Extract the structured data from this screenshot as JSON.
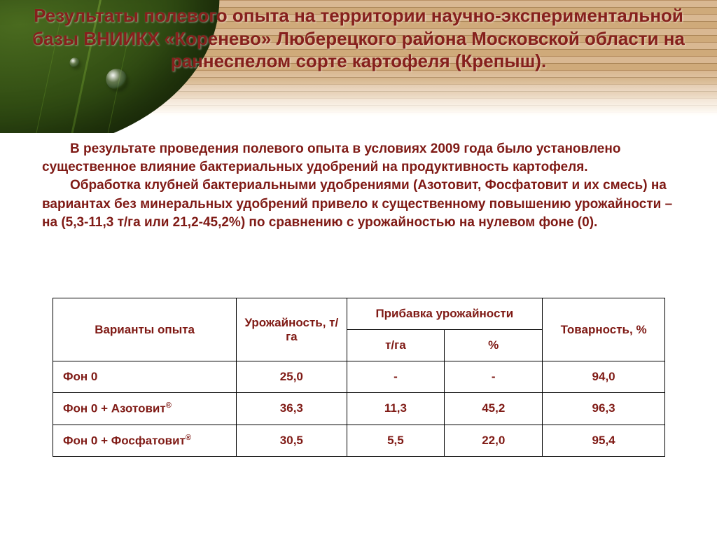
{
  "colors": {
    "text_primary": "#7f1a15",
    "title": "#86201c",
    "border": "#000000",
    "background": "#ffffff"
  },
  "typography": {
    "title_fontsize": 26,
    "body_fontsize": 19,
    "table_fontsize": 17,
    "weight": "bold",
    "family": "Arial"
  },
  "title": "Результаты полевого опыта на территории научно-экспериментальной базы ВНИИКХ «Коренево» Люберецкого района Московской области на раннеспелом сорте картофеля (Крепыш).",
  "paragraph1": "В результате  проведения полевого опыта в условиях 2009 года  было установлено существенное влияние бактериальных удобрений на продуктивность  картофеля.",
  "paragraph2": "Обработка клубней бактериальными удобрениями (Азотовит,  Фосфатовит и их смесь) на вариантах без минеральных удобрений привело к существенному повышению урожайности – на (5,3-11,3 т/га или 21,2-45,2%) по сравнению с урожайностью на нулевом  фоне (0).",
  "table": {
    "type": "table",
    "header_row1": {
      "c1": "Варианты опыта",
      "c2": "Урожайность, т/га",
      "c34": "Прибавка урожайности",
      "c5": "Товарность, %"
    },
    "header_row2": {
      "c3": "т/га",
      "c4": "%"
    },
    "rows": [
      {
        "variant": "Фон 0",
        "yield": "25,0",
        "inc_t": "-",
        "inc_p": "-",
        "mark": "94,0"
      },
      {
        "variant_html": "Фон 0  + Азотовит<sup>®</sup>",
        "yield": "36,3",
        "inc_t": "11,3",
        "inc_p": "45,2",
        "mark": "96,3"
      },
      {
        "variant_html": "Фон 0  + Фосфатовит<sup>®</sup>",
        "yield": "30,5",
        "inc_t": "5,5",
        "inc_p": "22,0",
        "mark": "95,4"
      }
    ],
    "column_widths_pct": [
      30,
      18,
      16,
      16,
      20
    ],
    "cell_align": {
      "first_col": "left",
      "others": "center"
    }
  }
}
